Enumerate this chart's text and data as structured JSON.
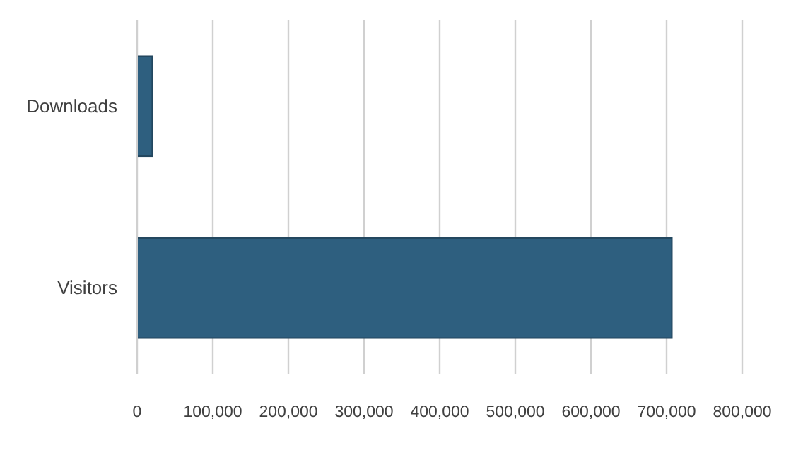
{
  "chart_data": {
    "type": "bar",
    "orientation": "horizontal",
    "categories": [
      "Downloads",
      "Visitors"
    ],
    "values": [
      20000,
      707000
    ],
    "color": "#2e5f7f",
    "xlim": [
      0,
      800000
    ],
    "xticks": [
      {
        "value": 0,
        "label": "0"
      },
      {
        "value": 100000,
        "label": "100,000"
      },
      {
        "value": 200000,
        "label": "200,000"
      },
      {
        "value": 300000,
        "label": "300,000"
      },
      {
        "value": 400000,
        "label": "400,000"
      },
      {
        "value": 500000,
        "label": "500,000"
      },
      {
        "value": 600000,
        "label": "600,000"
      },
      {
        "value": 700000,
        "label": "700,000"
      },
      {
        "value": 800000,
        "label": "800,000"
      }
    ],
    "grid": "x"
  }
}
